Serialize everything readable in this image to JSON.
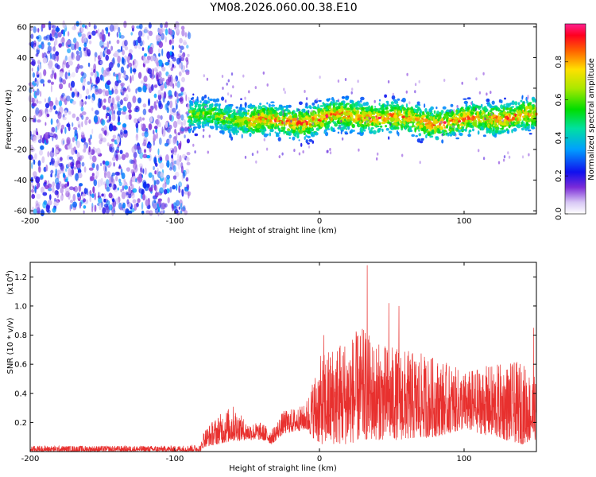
{
  "title": "YM08.2026.060.00.38.E10",
  "chart_data": [
    {
      "type": "heatmap",
      "xlabel": "Height of straight line (km)",
      "ylabel": "Frequency (Hz)",
      "xlim": [
        -200,
        150
      ],
      "ylim": [
        -62,
        62
      ],
      "x_ticks": [
        -200,
        -100,
        0,
        100
      ],
      "y_ticks": [
        60,
        40,
        20,
        0,
        -20,
        -40,
        -60
      ],
      "grid": false,
      "colorbar": {
        "label": "Normalized spectral amplitude",
        "range": [
          0,
          1
        ],
        "ticks": [
          0.0,
          0.2,
          0.4,
          0.6,
          0.8
        ]
      },
      "regions": [
        {
          "x_range": [
            -200,
            -90
          ],
          "freq_range": [
            -62,
            62
          ],
          "amplitude_range": [
            0.05,
            0.35
          ],
          "pattern": "diffuse noise"
        },
        {
          "x_range": [
            -90,
            150
          ],
          "freq_range": [
            -15,
            15
          ],
          "amplitude_range": [
            0.2,
            1.0
          ],
          "pattern": "band centered near 0 Hz"
        }
      ]
    },
    {
      "type": "line",
      "xlabel": "Height of straight line (km)",
      "ylabel": "SNR (10 * v/v)",
      "multiplier_label": "(x10",
      "multiplier_exponent": "4",
      "multiplier_close": ")",
      "xlim": [
        -200,
        150
      ],
      "ylim": [
        0,
        1.3
      ],
      "x_ticks": [
        -200,
        -100,
        0,
        100
      ],
      "y_ticks": [
        0.2,
        0.4,
        0.6,
        0.8,
        1.0,
        1.2
      ],
      "grid": false,
      "series": [
        {
          "color": "#e8302e",
          "envelope": [
            {
              "x": -200,
              "low": 0.0,
              "high": 0.04
            },
            {
              "x": -100,
              "low": 0.0,
              "high": 0.04
            },
            {
              "x": -82,
              "low": 0.0,
              "high": 0.05
            },
            {
              "x": -80,
              "low": 0.03,
              "high": 0.15
            },
            {
              "x": -70,
              "low": 0.05,
              "high": 0.25
            },
            {
              "x": -60,
              "low": 0.07,
              "high": 0.32
            },
            {
              "x": -50,
              "low": 0.08,
              "high": 0.2
            },
            {
              "x": -40,
              "low": 0.08,
              "high": 0.2
            },
            {
              "x": -33,
              "low": 0.05,
              "high": 0.15
            },
            {
              "x": -25,
              "low": 0.12,
              "high": 0.28
            },
            {
              "x": -10,
              "low": 0.15,
              "high": 0.32
            },
            {
              "x": 0,
              "low": 0.05,
              "high": 0.65
            },
            {
              "x": 10,
              "low": 0.05,
              "high": 0.75
            },
            {
              "x": 20,
              "low": 0.05,
              "high": 0.8
            },
            {
              "x": 30,
              "low": 0.08,
              "high": 0.85
            },
            {
              "x": 40,
              "low": 0.08,
              "high": 0.75
            },
            {
              "x": 60,
              "low": 0.08,
              "high": 0.7
            },
            {
              "x": 80,
              "low": 0.1,
              "high": 0.65
            },
            {
              "x": 100,
              "low": 0.15,
              "high": 0.55
            },
            {
              "x": 120,
              "low": 0.1,
              "high": 0.6
            },
            {
              "x": 140,
              "low": 0.05,
              "high": 0.62
            },
            {
              "x": 150,
              "low": 0.08,
              "high": 0.5
            }
          ],
          "peaks": [
            {
              "x": 3,
              "y": 0.8
            },
            {
              "x": 33,
              "y": 1.28
            },
            {
              "x": 48,
              "y": 1.02
            },
            {
              "x": 55,
              "y": 1.0
            },
            {
              "x": 148,
              "y": 0.85
            }
          ]
        }
      ]
    }
  ]
}
